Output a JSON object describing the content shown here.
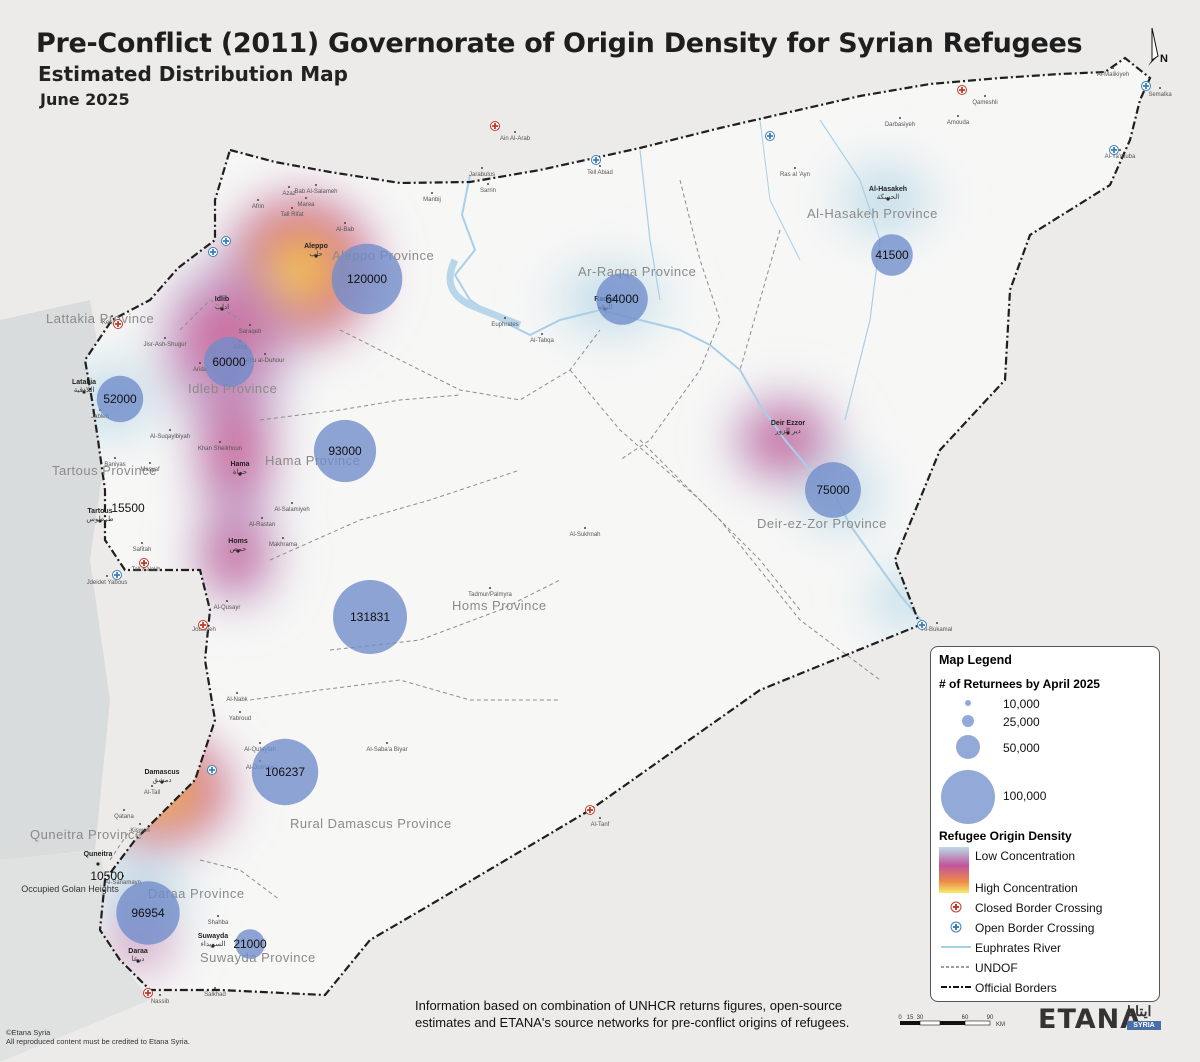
{
  "title": "Pre-Conflict (2011) Governorate of Origin Density for Syrian Refugees",
  "subtitle": "Estimated Distribution Map",
  "date": "June 2025",
  "north_label": "N",
  "colors": {
    "bubble": "#6f8ccb",
    "high": "#f4ea6a",
    "mid": "#c0508f",
    "low": "#b9dce6",
    "border": "#222222",
    "river": "#a9cfe8"
  },
  "provinces": [
    {
      "name": "Aleppo Province"
    },
    {
      "name": "Idleb Province"
    },
    {
      "name": "Lattakia Province"
    },
    {
      "name": "Tartous Province"
    },
    {
      "name": "Hama Province"
    },
    {
      "name": "Homs Province"
    },
    {
      "name": "Ar-Raqqa Province"
    },
    {
      "name": "Al-Hasakeh Province"
    },
    {
      "name": "Deir-ez-Zor Province"
    },
    {
      "name": "Rural Damascus Province"
    },
    {
      "name": "Quneitra Province"
    },
    {
      "name": "Daraa Province"
    },
    {
      "name": "Suwayda Province"
    }
  ],
  "returnee_counts": [
    {
      "value": "120000"
    },
    {
      "value": "60000"
    },
    {
      "value": "52000"
    },
    {
      "value": "93000"
    },
    {
      "value": "15500"
    },
    {
      "value": "131831"
    },
    {
      "value": "64000"
    },
    {
      "value": "41500"
    },
    {
      "value": "75000"
    },
    {
      "value": "106237"
    },
    {
      "value": "10500"
    },
    {
      "value": "96954"
    },
    {
      "value": "21000"
    }
  ],
  "cities": [
    {
      "name": "Aleppo",
      "ar": "حلب"
    },
    {
      "name": "Idlib",
      "ar": "ادلب"
    },
    {
      "name": "Latakia",
      "ar": "اللاذقية"
    },
    {
      "name": "Hama",
      "ar": "حماة"
    },
    {
      "name": "Tartous",
      "ar": "طرطوس"
    },
    {
      "name": "Homs",
      "ar": "حمص"
    },
    {
      "name": "Raqqa",
      "ar": "الرقة"
    },
    {
      "name": "Al-Hasakeh",
      "ar": "الحسكة"
    },
    {
      "name": "Deir Ezzor",
      "ar": "دير الزور"
    },
    {
      "name": "Damascus",
      "ar": "دمشق"
    },
    {
      "name": "Quneitra",
      "ar": ""
    },
    {
      "name": "Daraa",
      "ar": "درعا"
    },
    {
      "name": "Suwayda",
      "ar": "السويداء"
    }
  ],
  "places": [
    {
      "name": "Bab Al-Salameh"
    },
    {
      "name": "Azaz"
    },
    {
      "name": "Afrin"
    },
    {
      "name": "Marea"
    },
    {
      "name": "Tall Rifat"
    },
    {
      "name": "Al-Bab"
    },
    {
      "name": "Manbij"
    },
    {
      "name": "Jarabulus"
    },
    {
      "name": "Ain Al-Arab"
    },
    {
      "name": "Sarrin"
    },
    {
      "name": "Tell Abiad"
    },
    {
      "name": "Ras al 'Ayn"
    },
    {
      "name": "Darbasiyeh"
    },
    {
      "name": "Amouda"
    },
    {
      "name": "Qameshli"
    },
    {
      "name": "Al-Malikiyeh"
    },
    {
      "name": "Semalka"
    },
    {
      "name": "Al-Ya'rouba"
    },
    {
      "name": "Jisr-Ash-Shugur"
    },
    {
      "name": "Ariha"
    },
    {
      "name": "Saraqeb"
    },
    {
      "name": "Abu al-Duhour"
    },
    {
      "name": "Kessab"
    },
    {
      "name": "Jableh"
    },
    {
      "name": "Khan Sheikhoun"
    },
    {
      "name": "Al-Suqaylbiyah"
    },
    {
      "name": "Baniyas"
    },
    {
      "name": "Masyaf"
    },
    {
      "name": "Al-Salamiyeh"
    },
    {
      "name": "Al-Rastan"
    },
    {
      "name": "Makhrama"
    },
    {
      "name": "Safitah"
    },
    {
      "name": "Tall Kalakh"
    },
    {
      "name": "Al-Sukhnah"
    },
    {
      "name": "Tadmur/Palmyra"
    },
    {
      "name": "Al-Qusayr"
    },
    {
      "name": "Jousiyeh"
    },
    {
      "name": "Al-Nabk"
    },
    {
      "name": "Yabroud"
    },
    {
      "name": "Al-Qutayfah"
    },
    {
      "name": "Al-Saba'a Biyar"
    },
    {
      "name": "Al-Dumayr"
    },
    {
      "name": "Al-Tall"
    },
    {
      "name": "Qatana"
    },
    {
      "name": "Kisweh"
    },
    {
      "name": "Al-Sanamayn"
    },
    {
      "name": "Shahba"
    },
    {
      "name": "Salkhad"
    },
    {
      "name": "Nassib"
    },
    {
      "name": "Al-Tanf"
    },
    {
      "name": "Al-Bukamal"
    },
    {
      "name": "Euphrates"
    },
    {
      "name": "Al-Tabqa"
    },
    {
      "name": "Arida"
    },
    {
      "name": "Jdeidet Yabous"
    },
    {
      "name": "Occupied Golan Heights"
    }
  ],
  "legend": {
    "title": "Map Legend",
    "size_title": "# of Returnees by April 2025",
    "sizes": [
      {
        "label": "10,000"
      },
      {
        "label": "25,000"
      },
      {
        "label": "50,000"
      },
      {
        "label": "100,000"
      }
    ],
    "density_title": "Refugee Origin Density",
    "low": "Low Concentration",
    "high": "High Concentration",
    "items": [
      {
        "label": "Closed Border Crossing"
      },
      {
        "label": "Open Border Crossing"
      },
      {
        "label": "Euphrates River"
      },
      {
        "label": "UNDOF"
      },
      {
        "label": "Official Borders"
      }
    ]
  },
  "footer": "Information based on combination of UNHCR returns figures, open-source estimates and ETANA's source networks for pre-conflict origins of refugees.",
  "credit1": "©Etana Syria",
  "credit2": "All reproduced content must be credited to Etana Syria.",
  "scale": {
    "labels": [
      "0",
      "15",
      "30",
      "60",
      "90"
    ],
    "unit": "KM"
  },
  "brand": {
    "name": "ETANA",
    "ar": "ايتانا",
    "sub": "SYRIA"
  }
}
